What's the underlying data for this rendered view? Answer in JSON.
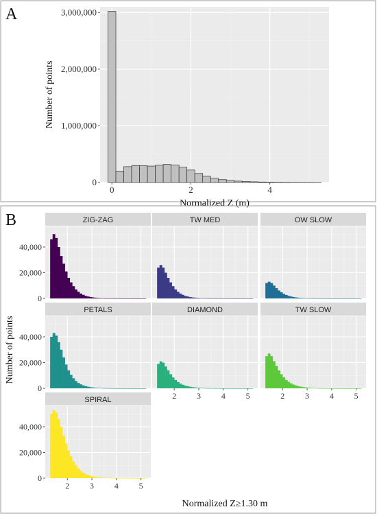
{
  "panel_a": {
    "letter": "A",
    "chart_data": {
      "type": "bar",
      "xlabel": "Normalized Z (m)",
      "ylabel": "Number of points",
      "xlim": [
        -0.3,
        5.5
      ],
      "ylim": [
        0,
        3100000
      ],
      "xticks": [
        0,
        2,
        4
      ],
      "yticks": [
        0,
        1000000,
        2000000,
        3000000
      ],
      "ytick_labels": [
        "0",
        "1,000,000",
        "2,000,000",
        "3,000,000"
      ],
      "bin_width": 0.2,
      "bin_centers": [
        0.0,
        0.2,
        0.4,
        0.6,
        0.8,
        1.0,
        1.2,
        1.4,
        1.6,
        1.8,
        2.0,
        2.2,
        2.4,
        2.6,
        2.8,
        3.0,
        3.2,
        3.4,
        3.6,
        3.8,
        4.0,
        4.2,
        4.4,
        4.6,
        4.8,
        5.0,
        5.2
      ],
      "values": [
        3020000,
        200000,
        280000,
        300000,
        295000,
        290000,
        305000,
        320000,
        310000,
        270000,
        220000,
        160000,
        110000,
        75000,
        52000,
        36000,
        25000,
        18000,
        13000,
        9000,
        7000,
        5000,
        4000,
        3000,
        2500,
        2000,
        1500
      ],
      "bar_color": "#c0c0c0",
      "grid": true
    }
  },
  "panel_b": {
    "letter": "B",
    "xlabel": "Normalized Z≥1.30 m",
    "ylabel": "Number of points",
    "chart_data": {
      "type": "bar",
      "layout": "facets 3 columns",
      "xlim": [
        1.1,
        5.4
      ],
      "ylim": [
        0,
        56000
      ],
      "xticks": [
        2,
        3,
        4,
        5
      ],
      "yticks": [
        0,
        20000,
        40000
      ],
      "ytick_labels": [
        "0",
        "20,000",
        "40,000"
      ],
      "bin_width": 0.1,
      "bin_start": 1.3,
      "grid": true,
      "facets": [
        {
          "title": "ZIG-ZAG",
          "color": "#440154",
          "values": [
            46000,
            50000,
            47000,
            40000,
            33000,
            27000,
            21000,
            16000,
            12500,
            9500,
            7000,
            5200,
            3800,
            2800,
            2000,
            1500,
            1100,
            800,
            600,
            450,
            350,
            270,
            200,
            160,
            130,
            100,
            80,
            60,
            50,
            40,
            30,
            25,
            20,
            15,
            10,
            8,
            6,
            5,
            4
          ]
        },
        {
          "title": "TW MED",
          "color": "#3b3a87",
          "values": [
            24000,
            26000,
            24000,
            20000,
            16000,
            12500,
            9500,
            7000,
            5200,
            3800,
            2800,
            2000,
            1500,
            1100,
            800,
            600,
            450,
            350,
            270,
            200,
            160,
            130,
            100,
            80,
            60,
            50,
            40,
            30,
            25,
            20,
            15,
            12,
            10,
            8,
            6,
            5,
            4,
            3,
            2
          ]
        },
        {
          "title": "OW SLOW",
          "color": "#1f6e96",
          "values": [
            12000,
            13000,
            12000,
            10000,
            8000,
            6200,
            4800,
            3600,
            2700,
            2000,
            1500,
            1100,
            800,
            600,
            450,
            340,
            260,
            200,
            150,
            110,
            90,
            70,
            50,
            40,
            30,
            25,
            20,
            15,
            12,
            10,
            8,
            6,
            5,
            4,
            3,
            2,
            2,
            1,
            1
          ]
        },
        {
          "title": "PETALS",
          "color": "#20908c",
          "values": [
            40000,
            43000,
            41000,
            36000,
            30000,
            24000,
            18500,
            14000,
            10500,
            7800,
            5700,
            4200,
            3100,
            2300,
            1700,
            1250,
            900,
            650,
            480,
            350,
            260,
            190,
            140,
            100,
            80,
            60,
            45,
            35,
            25,
            20,
            15,
            12,
            10,
            8,
            6,
            5,
            4,
            3,
            2
          ]
        },
        {
          "title": "DIAMOND",
          "color": "#29b07d",
          "values": [
            19000,
            21000,
            20000,
            17000,
            14000,
            11000,
            8500,
            6500,
            4900,
            3700,
            2800,
            2100,
            1600,
            1200,
            900,
            680,
            500,
            380,
            280,
            210,
            160,
            120,
            90,
            70,
            50,
            40,
            30,
            25,
            20,
            15,
            12,
            10,
            8,
            6,
            5,
            4,
            3,
            2,
            2
          ]
        },
        {
          "title": "TW SLOW",
          "color": "#5cc83a",
          "values": [
            25000,
            27000,
            25000,
            21000,
            17500,
            14000,
            11000,
            8500,
            6500,
            5000,
            3800,
            2900,
            2200,
            1650,
            1250,
            950,
            720,
            540,
            410,
            310,
            230,
            170,
            130,
            100,
            75,
            55,
            40,
            30,
            22,
            17,
            13,
            10,
            8,
            6,
            5,
            4,
            3,
            2,
            2
          ]
        },
        {
          "title": "SPIRAL",
          "color": "#fde725",
          "values": [
            50000,
            53000,
            51000,
            46000,
            40000,
            33000,
            27000,
            21500,
            17000,
            13000,
            10000,
            7600,
            5700,
            4300,
            3200,
            2400,
            1800,
            1350,
            1000,
            760,
            570,
            430,
            320,
            240,
            180,
            135,
            100,
            75,
            56,
            42,
            32,
            24,
            18,
            14,
            10,
            8,
            6,
            5,
            4
          ]
        }
      ]
    }
  }
}
